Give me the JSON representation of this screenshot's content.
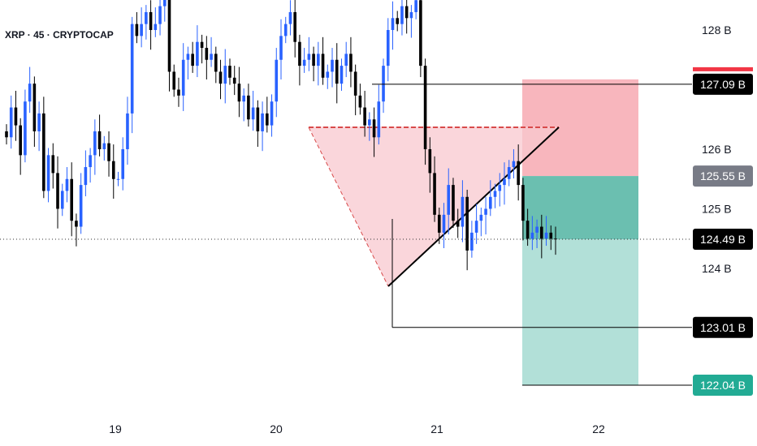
{
  "chart_data": {
    "type": "candlestick",
    "title": "XRP · 45 · CRYPTOCAP",
    "ylim": [
      121.6,
      128.55
    ],
    "x_tick_labels": [
      "19",
      "20",
      "21",
      "22"
    ],
    "y_tick_labels": [
      {
        "label": "128 B",
        "value": 128
      },
      {
        "label": "126 B",
        "value": 126
      },
      {
        "label": "125 B",
        "value": 125
      },
      {
        "label": "124 B",
        "value": 124
      }
    ],
    "price_labels": [
      {
        "label": "127.09 B",
        "value": 127.09,
        "color": "#000000",
        "role": "target-level"
      },
      {
        "label": "125.55 B",
        "value": 125.55,
        "color": "#787b86",
        "role": "entry"
      },
      {
        "label": "124.49 B",
        "value": 124.49,
        "color": "#000000",
        "role": "last-price"
      },
      {
        "label": "123.01 B",
        "value": 123.01,
        "color": "#000000",
        "role": "target-level"
      },
      {
        "label": "122.04 B",
        "value": 122.04,
        "color": "#22ab94",
        "role": "take-profit"
      }
    ],
    "stop_level": 127.09,
    "colors": {
      "up": "#2962ff",
      "down": "#000000",
      "stop_zone": "#f7a9b2",
      "profit_zone": "#6bbfb0",
      "triangle": "#f8c8cf",
      "triangle_edge": "#d84a4a"
    },
    "candles_close": [
      126.2,
      126.7,
      126.4,
      125.9,
      126.8,
      127.1,
      126.3,
      126.6,
      125.3,
      125.9,
      125.6,
      125.0,
      125.3,
      125.5,
      124.8,
      124.7,
      125.4,
      125.7,
      125.9,
      126.3,
      126.0,
      126.1,
      125.8,
      125.5,
      125.5,
      126.0,
      126.6,
      128.1,
      127.9,
      128.1,
      128.3,
      128.0,
      128.1,
      128.4,
      128.6,
      127.3,
      127.0,
      126.9,
      127.5,
      127.6,
      127.4,
      127.8,
      127.7,
      127.5,
      127.6,
      127.3,
      127.1,
      127.4,
      127.2,
      127.1,
      126.8,
      126.9,
      126.5,
      126.7,
      126.3,
      126.6,
      126.4,
      126.8,
      127.5,
      127.9,
      128.1,
      128.3,
      127.8,
      127.4,
      127.5,
      127.6,
      127.4,
      127.6,
      127.2,
      127.3,
      127.5,
      127.1,
      127.4,
      127.6,
      127.3,
      126.9,
      126.7,
      126.4,
      126.5,
      126.2,
      126.8,
      127.4,
      128.0,
      128.2,
      128.1,
      128.4,
      128.2,
      128.3,
      128.5,
      127.4,
      126.0,
      125.6,
      124.9,
      124.6,
      124.9,
      125.4,
      124.8,
      124.7,
      125.2,
      124.3,
      124.6,
      124.8,
      124.9,
      125.0,
      125.2,
      125.3,
      125.4,
      125.5,
      125.7,
      125.8,
      125.4,
      124.8,
      124.5,
      124.6,
      124.7,
      124.5,
      124.6,
      124.5,
      124.49
    ]
  }
}
